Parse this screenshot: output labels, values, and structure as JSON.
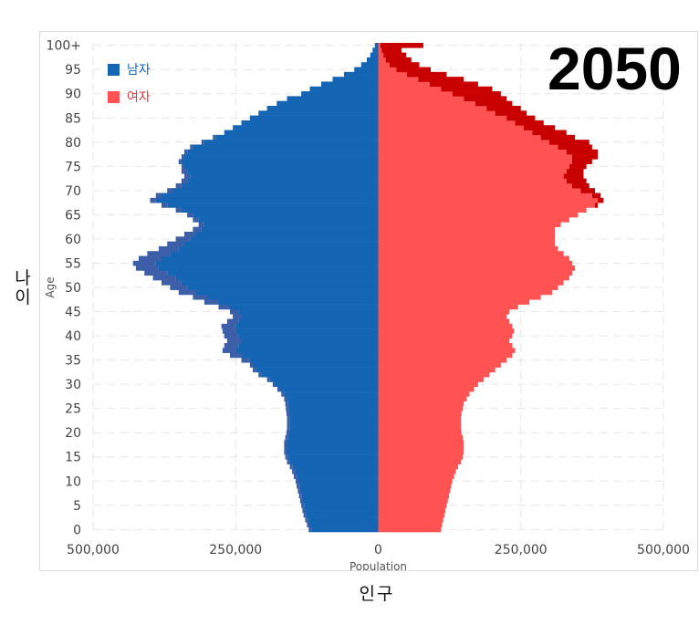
{
  "year": "2050",
  "outer_y_label": [
    "나",
    "이"
  ],
  "outer_x_label": "인구",
  "legend": [
    {
      "label": "남자",
      "color": "#1565b5",
      "text_color": "#1565b5"
    },
    {
      "label": "여자",
      "color": "#ff5252",
      "text_color": "#e0393a"
    }
  ],
  "colors": {
    "male_overflow": "#3d5fa8",
    "female_overflow": "#c80000",
    "grid": "#e6e6e6",
    "axis_text": "#444444"
  },
  "chart_data": {
    "type": "bar",
    "orientation": "horizontal",
    "title": "2050",
    "xlabel": "Population",
    "ylabel": "Age",
    "xlim": [
      -500000,
      500000
    ],
    "x_ticks": [
      -500000,
      -250000,
      0,
      250000,
      500000
    ],
    "x_tick_labels": [
      "500,000",
      "250,000",
      "0",
      "250,000",
      "500,000"
    ],
    "y_ticks": [
      0,
      5,
      10,
      15,
      20,
      25,
      30,
      35,
      40,
      45,
      50,
      55,
      60,
      65,
      70,
      75,
      80,
      85,
      90,
      95,
      100
    ],
    "y_tick_labels": [
      "0",
      "5",
      "10",
      "15",
      "20",
      "25",
      "30",
      "35",
      "40",
      "45",
      "50",
      "55",
      "60",
      "65",
      "70",
      "75",
      "80",
      "85",
      "90",
      "95",
      "100+"
    ],
    "series": [
      {
        "name": "남자",
        "values": [
          117000,
          120000,
          123000,
          126000,
          128000,
          130000,
          132000,
          134000,
          136000,
          138000,
          140000,
          143000,
          146000,
          150000,
          155000,
          158000,
          160000,
          160000,
          160000,
          158000,
          156000,
          155000,
          155000,
          155000,
          156000,
          157000,
          158000,
          160000,
          165000,
          172000,
          180000,
          190000,
          205000,
          215000,
          220000,
          225000,
          240000,
          248000,
          245000,
          240000,
          245000,
          248000,
          250000,
          245000,
          240000,
          245000,
          260000,
          280000,
          300000,
          320000,
          335000,
          345000,
          355000,
          370000,
          385000,
          390000,
          380000,
          365000,
          350000,
          340000,
          330000,
          320000,
          310000,
          305000,
          315000,
          325000,
          345000,
          370000,
          390000,
          380000,
          360000,
          345000,
          335000,
          330000,
          335000,
          340000,
          345000,
          340000,
          335000,
          325000,
          305000,
          285000,
          270000,
          255000,
          240000,
          225000,
          210000,
          195000,
          178000,
          160000,
          135000,
          120000,
          100000,
          80000,
          60000,
          42000,
          30000,
          20000,
          14000,
          10000,
          6000
        ],
        "overflow": [
          5000,
          5000,
          5000,
          5000,
          5000,
          5000,
          5000,
          5000,
          5000,
          5000,
          5000,
          5000,
          5000,
          5000,
          5000,
          5000,
          5000,
          5000,
          5000,
          5000,
          5000,
          5000,
          5000,
          5000,
          5000,
          5000,
          5000,
          5000,
          5000,
          5000,
          5000,
          5000,
          5000,
          5000,
          5000,
          15000,
          20000,
          25000,
          25000,
          25000,
          25000,
          25000,
          25000,
          20000,
          15000,
          15000,
          20000,
          25000,
          25000,
          30000,
          30000,
          35000,
          40000,
          40000,
          40000,
          40000,
          40000,
          40000,
          35000,
          30000,
          25000,
          20000,
          15000,
          10000,
          10000,
          10000,
          10000,
          10000,
          10000,
          10000,
          10000,
          10000,
          10000,
          10000,
          10000,
          5000,
          5000,
          5000,
          5000,
          5000,
          5000,
          5000,
          0,
          0,
          0,
          0,
          0,
          0,
          0,
          0,
          0,
          0,
          0,
          0,
          0,
          0,
          0,
          0,
          0,
          0,
          0
        ]
      },
      {
        "name": "여자",
        "values": [
          110000,
          112000,
          114000,
          116000,
          118000,
          120000,
          122000,
          124000,
          126000,
          128000,
          130000,
          133000,
          136000,
          140000,
          145000,
          148000,
          150000,
          150000,
          150000,
          148000,
          146000,
          145000,
          145000,
          145000,
          146000,
          148000,
          150000,
          155000,
          160000,
          168000,
          175000,
          185000,
          195000,
          205000,
          215000,
          225000,
          235000,
          240000,
          235000,
          230000,
          235000,
          238000,
          235000,
          230000,
          225000,
          230000,
          245000,
          265000,
          285000,
          305000,
          315000,
          325000,
          335000,
          340000,
          345000,
          340000,
          335000,
          325000,
          315000,
          310000,
          310000,
          310000,
          310000,
          320000,
          335000,
          350000,
          365000,
          380000,
          385000,
          375000,
          355000,
          340000,
          330000,
          325000,
          330000,
          335000,
          340000,
          340000,
          330000,
          315000,
          300000,
          285000,
          270000,
          255000,
          240000,
          225000,
          205000,
          190000,
          170000,
          150000,
          130000,
          110000,
          90000,
          70000,
          50000,
          32000,
          20000,
          13000,
          9000,
          6000,
          4000
        ],
        "overflow": [
          0,
          0,
          0,
          0,
          0,
          0,
          0,
          0,
          0,
          0,
          0,
          0,
          0,
          0,
          0,
          0,
          0,
          0,
          0,
          0,
          0,
          0,
          0,
          0,
          0,
          0,
          0,
          0,
          0,
          0,
          0,
          0,
          0,
          0,
          0,
          0,
          0,
          0,
          0,
          0,
          0,
          0,
          0,
          0,
          0,
          0,
          0,
          0,
          0,
          0,
          0,
          0,
          0,
          0,
          0,
          0,
          0,
          0,
          0,
          0,
          0,
          0,
          0,
          0,
          0,
          0,
          0,
          5000,
          10000,
          15000,
          25000,
          30000,
          35000,
          35000,
          30000,
          30000,
          35000,
          45000,
          55000,
          60000,
          70000,
          60000,
          60000,
          55000,
          50000,
          50000,
          55000,
          60000,
          65000,
          75000,
          85000,
          90000,
          85000,
          80000,
          70000,
          60000,
          52000,
          45000,
          40000,
          35000,
          75000
        ]
      }
    ]
  }
}
